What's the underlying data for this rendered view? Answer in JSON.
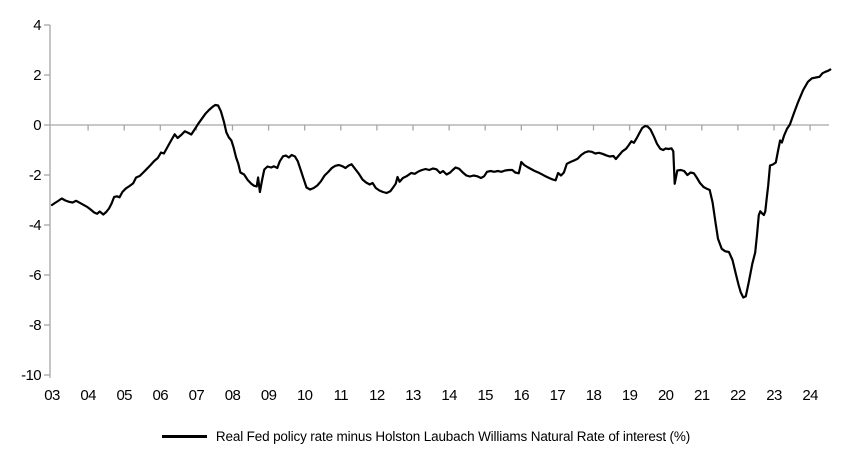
{
  "chart_data": {
    "type": "line",
    "title": "",
    "legend": "Real Fed policy rate minus Holston Laubach Williams Natural Rate of interest (%)",
    "x_axis": {
      "labels": [
        "03",
        "04",
        "05",
        "06",
        "07",
        "08",
        "09",
        "10",
        "11",
        "12",
        "13",
        "14",
        "15",
        "16",
        "17",
        "18",
        "19",
        "20",
        "21",
        "22",
        "23",
        "24"
      ],
      "start_year": 2003,
      "end_year": 2024.6,
      "tick_side": "below-zero-line"
    },
    "y_axis": {
      "ticks": [
        4,
        2,
        0,
        -2,
        -4,
        -6,
        -8,
        -10
      ],
      "min": -10,
      "max": 4
    },
    "grid": "horizontal zero line only",
    "legend_position": "bottom-center",
    "colors": {
      "series": "#000000",
      "axis": "#a6a6a6",
      "text": "#000000",
      "background": "#ffffff"
    },
    "series": [
      {
        "name": "Real Fed policy rate minus Holston Laubach Williams Natural Rate of interest (%)",
        "points": [
          [
            2003.0,
            -3.2
          ],
          [
            2003.08,
            -3.12
          ],
          [
            2003.17,
            -3.04
          ],
          [
            2003.27,
            -2.94
          ],
          [
            2003.37,
            -3.02
          ],
          [
            2003.47,
            -3.07
          ],
          [
            2003.57,
            -3.1
          ],
          [
            2003.67,
            -3.03
          ],
          [
            2003.77,
            -3.11
          ],
          [
            2003.87,
            -3.19
          ],
          [
            2003.97,
            -3.27
          ],
          [
            2004.07,
            -3.38
          ],
          [
            2004.17,
            -3.5
          ],
          [
            2004.25,
            -3.55
          ],
          [
            2004.32,
            -3.46
          ],
          [
            2004.42,
            -3.58
          ],
          [
            2004.5,
            -3.48
          ],
          [
            2004.58,
            -3.34
          ],
          [
            2004.65,
            -3.14
          ],
          [
            2004.72,
            -2.88
          ],
          [
            2004.8,
            -2.85
          ],
          [
            2004.87,
            -2.89
          ],
          [
            2004.95,
            -2.68
          ],
          [
            2005.05,
            -2.53
          ],
          [
            2005.15,
            -2.44
          ],
          [
            2005.25,
            -2.33
          ],
          [
            2005.33,
            -2.1
          ],
          [
            2005.43,
            -2.04
          ],
          [
            2005.53,
            -1.9
          ],
          [
            2005.63,
            -1.75
          ],
          [
            2005.73,
            -1.6
          ],
          [
            2005.83,
            -1.44
          ],
          [
            2005.93,
            -1.32
          ],
          [
            2006.02,
            -1.1
          ],
          [
            2006.1,
            -1.14
          ],
          [
            2006.2,
            -0.88
          ],
          [
            2006.3,
            -0.62
          ],
          [
            2006.4,
            -0.37
          ],
          [
            2006.48,
            -0.52
          ],
          [
            2006.58,
            -0.4
          ],
          [
            2006.68,
            -0.25
          ],
          [
            2006.78,
            -0.32
          ],
          [
            2006.86,
            -0.38
          ],
          [
            2006.95,
            -0.18
          ],
          [
            2007.05,
            0.05
          ],
          [
            2007.15,
            0.25
          ],
          [
            2007.25,
            0.45
          ],
          [
            2007.35,
            0.6
          ],
          [
            2007.45,
            0.73
          ],
          [
            2007.52,
            0.8
          ],
          [
            2007.6,
            0.78
          ],
          [
            2007.68,
            0.55
          ],
          [
            2007.76,
            0.15
          ],
          [
            2007.83,
            -0.3
          ],
          [
            2007.9,
            -0.5
          ],
          [
            2007.97,
            -0.62
          ],
          [
            2008.03,
            -0.9
          ],
          [
            2008.1,
            -1.3
          ],
          [
            2008.16,
            -1.55
          ],
          [
            2008.22,
            -1.9
          ],
          [
            2008.32,
            -1.98
          ],
          [
            2008.42,
            -2.2
          ],
          [
            2008.52,
            -2.35
          ],
          [
            2008.6,
            -2.43
          ],
          [
            2008.67,
            -2.46
          ],
          [
            2008.71,
            -2.1
          ],
          [
            2008.76,
            -2.68
          ],
          [
            2008.82,
            -2.2
          ],
          [
            2008.88,
            -1.78
          ],
          [
            2008.97,
            -1.66
          ],
          [
            2009.07,
            -1.7
          ],
          [
            2009.15,
            -1.65
          ],
          [
            2009.24,
            -1.72
          ],
          [
            2009.31,
            -1.45
          ],
          [
            2009.4,
            -1.25
          ],
          [
            2009.48,
            -1.22
          ],
          [
            2009.56,
            -1.3
          ],
          [
            2009.64,
            -1.2
          ],
          [
            2009.73,
            -1.26
          ],
          [
            2009.81,
            -1.45
          ],
          [
            2009.89,
            -1.8
          ],
          [
            2009.97,
            -2.15
          ],
          [
            2010.05,
            -2.5
          ],
          [
            2010.15,
            -2.58
          ],
          [
            2010.25,
            -2.52
          ],
          [
            2010.35,
            -2.42
          ],
          [
            2010.45,
            -2.25
          ],
          [
            2010.55,
            -2.02
          ],
          [
            2010.65,
            -1.88
          ],
          [
            2010.75,
            -1.72
          ],
          [
            2010.85,
            -1.63
          ],
          [
            2010.95,
            -1.6
          ],
          [
            2011.05,
            -1.65
          ],
          [
            2011.13,
            -1.72
          ],
          [
            2011.22,
            -1.62
          ],
          [
            2011.3,
            -1.57
          ],
          [
            2011.4,
            -1.76
          ],
          [
            2011.5,
            -1.95
          ],
          [
            2011.6,
            -2.18
          ],
          [
            2011.7,
            -2.3
          ],
          [
            2011.8,
            -2.38
          ],
          [
            2011.88,
            -2.32
          ],
          [
            2011.97,
            -2.52
          ],
          [
            2012.07,
            -2.62
          ],
          [
            2012.17,
            -2.68
          ],
          [
            2012.27,
            -2.72
          ],
          [
            2012.37,
            -2.65
          ],
          [
            2012.45,
            -2.5
          ],
          [
            2012.52,
            -2.35
          ],
          [
            2012.57,
            -2.08
          ],
          [
            2012.63,
            -2.27
          ],
          [
            2012.72,
            -2.12
          ],
          [
            2012.82,
            -2.05
          ],
          [
            2012.95,
            -1.92
          ],
          [
            2013.05,
            -1.95
          ],
          [
            2013.15,
            -1.86
          ],
          [
            2013.25,
            -1.8
          ],
          [
            2013.35,
            -1.76
          ],
          [
            2013.45,
            -1.8
          ],
          [
            2013.55,
            -1.74
          ],
          [
            2013.65,
            -1.77
          ],
          [
            2013.75,
            -1.92
          ],
          [
            2013.83,
            -1.84
          ],
          [
            2013.93,
            -1.98
          ],
          [
            2014.03,
            -1.9
          ],
          [
            2014.1,
            -1.8
          ],
          [
            2014.18,
            -1.7
          ],
          [
            2014.28,
            -1.75
          ],
          [
            2014.38,
            -1.9
          ],
          [
            2014.48,
            -2.02
          ],
          [
            2014.58,
            -2.06
          ],
          [
            2014.68,
            -2.02
          ],
          [
            2014.78,
            -2.05
          ],
          [
            2014.88,
            -2.12
          ],
          [
            2014.97,
            -2.05
          ],
          [
            2015.05,
            -1.87
          ],
          [
            2015.15,
            -1.84
          ],
          [
            2015.25,
            -1.87
          ],
          [
            2015.35,
            -1.84
          ],
          [
            2015.45,
            -1.87
          ],
          [
            2015.55,
            -1.82
          ],
          [
            2015.65,
            -1.8
          ],
          [
            2015.75,
            -1.8
          ],
          [
            2015.83,
            -1.9
          ],
          [
            2015.93,
            -1.93
          ],
          [
            2016.0,
            -1.48
          ],
          [
            2016.08,
            -1.6
          ],
          [
            2016.17,
            -1.68
          ],
          [
            2016.27,
            -1.76
          ],
          [
            2016.37,
            -1.84
          ],
          [
            2016.47,
            -1.9
          ],
          [
            2016.57,
            -1.97
          ],
          [
            2016.67,
            -2.05
          ],
          [
            2016.77,
            -2.12
          ],
          [
            2016.87,
            -2.18
          ],
          [
            2016.95,
            -2.21
          ],
          [
            2017.02,
            -1.92
          ],
          [
            2017.1,
            -2.02
          ],
          [
            2017.18,
            -1.9
          ],
          [
            2017.26,
            -1.55
          ],
          [
            2017.36,
            -1.48
          ],
          [
            2017.46,
            -1.42
          ],
          [
            2017.56,
            -1.35
          ],
          [
            2017.66,
            -1.2
          ],
          [
            2017.76,
            -1.1
          ],
          [
            2017.86,
            -1.05
          ],
          [
            2017.95,
            -1.07
          ],
          [
            2018.05,
            -1.14
          ],
          [
            2018.15,
            -1.11
          ],
          [
            2018.25,
            -1.15
          ],
          [
            2018.35,
            -1.21
          ],
          [
            2018.45,
            -1.26
          ],
          [
            2018.55,
            -1.24
          ],
          [
            2018.62,
            -1.36
          ],
          [
            2018.7,
            -1.22
          ],
          [
            2018.8,
            -1.05
          ],
          [
            2018.9,
            -0.95
          ],
          [
            2018.97,
            -0.82
          ],
          [
            2019.05,
            -0.65
          ],
          [
            2019.12,
            -0.71
          ],
          [
            2019.2,
            -0.52
          ],
          [
            2019.28,
            -0.3
          ],
          [
            2019.35,
            -0.12
          ],
          [
            2019.43,
            -0.04
          ],
          [
            2019.5,
            -0.06
          ],
          [
            2019.58,
            -0.18
          ],
          [
            2019.67,
            -0.45
          ],
          [
            2019.76,
            -0.75
          ],
          [
            2019.85,
            -0.95
          ],
          [
            2019.93,
            -1.0
          ],
          [
            2020.0,
            -0.94
          ],
          [
            2020.08,
            -0.96
          ],
          [
            2020.16,
            -0.93
          ],
          [
            2020.21,
            -1.05
          ],
          [
            2020.25,
            -2.35
          ],
          [
            2020.32,
            -1.82
          ],
          [
            2020.42,
            -1.8
          ],
          [
            2020.51,
            -1.84
          ],
          [
            2020.6,
            -2.0
          ],
          [
            2020.69,
            -1.9
          ],
          [
            2020.78,
            -1.93
          ],
          [
            2020.86,
            -2.1
          ],
          [
            2020.95,
            -2.32
          ],
          [
            2021.05,
            -2.48
          ],
          [
            2021.14,
            -2.55
          ],
          [
            2021.22,
            -2.6
          ],
          [
            2021.3,
            -3.1
          ],
          [
            2021.38,
            -3.9
          ],
          [
            2021.45,
            -4.55
          ],
          [
            2021.55,
            -4.95
          ],
          [
            2021.65,
            -5.05
          ],
          [
            2021.75,
            -5.08
          ],
          [
            2021.85,
            -5.4
          ],
          [
            2021.95,
            -6.0
          ],
          [
            2022.02,
            -6.4
          ],
          [
            2022.08,
            -6.7
          ],
          [
            2022.15,
            -6.9
          ],
          [
            2022.22,
            -6.85
          ],
          [
            2022.3,
            -6.3
          ],
          [
            2022.4,
            -5.55
          ],
          [
            2022.48,
            -5.1
          ],
          [
            2022.53,
            -4.4
          ],
          [
            2022.58,
            -3.6
          ],
          [
            2022.62,
            -3.45
          ],
          [
            2022.66,
            -3.52
          ],
          [
            2022.72,
            -3.6
          ],
          [
            2022.76,
            -3.45
          ],
          [
            2022.8,
            -2.9
          ],
          [
            2022.84,
            -2.42
          ],
          [
            2022.89,
            -1.62
          ],
          [
            2022.97,
            -1.58
          ],
          [
            2023.05,
            -1.5
          ],
          [
            2023.12,
            -0.98
          ],
          [
            2023.17,
            -0.62
          ],
          [
            2023.22,
            -0.7
          ],
          [
            2023.28,
            -0.42
          ],
          [
            2023.36,
            -0.15
          ],
          [
            2023.44,
            0.02
          ],
          [
            2023.55,
            0.47
          ],
          [
            2023.67,
            0.93
          ],
          [
            2023.81,
            1.4
          ],
          [
            2023.94,
            1.73
          ],
          [
            2024.05,
            1.87
          ],
          [
            2024.16,
            1.9
          ],
          [
            2024.26,
            1.93
          ],
          [
            2024.34,
            2.07
          ],
          [
            2024.42,
            2.13
          ],
          [
            2024.5,
            2.17
          ],
          [
            2024.56,
            2.22
          ]
        ]
      }
    ]
  }
}
